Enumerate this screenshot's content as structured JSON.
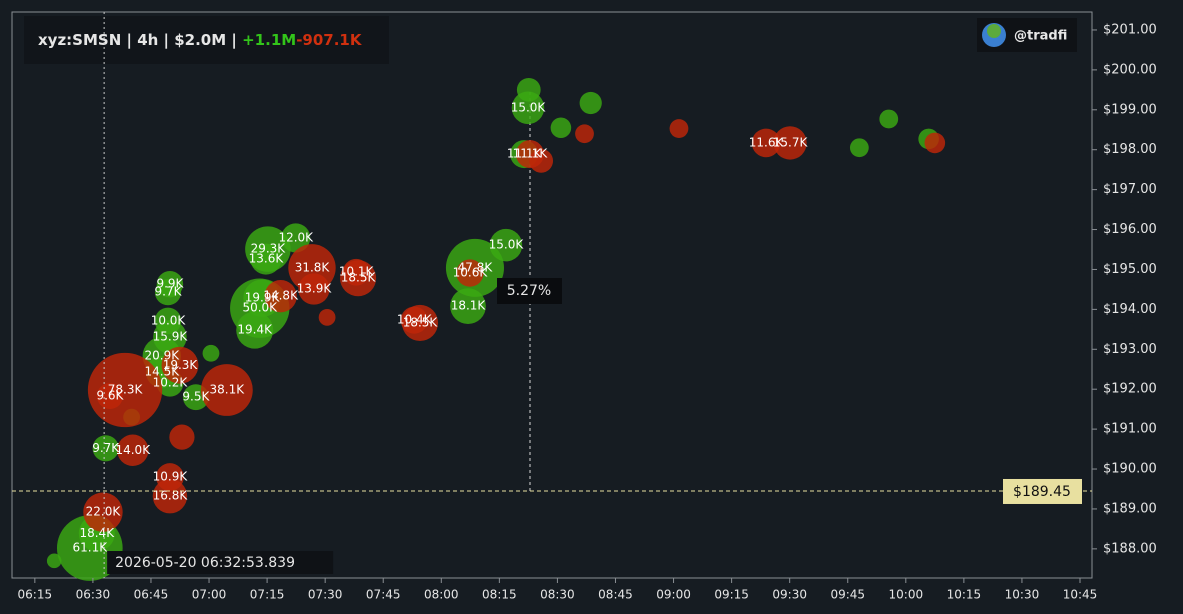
{
  "header": {
    "title": "xyz:SMSN | 4h | $2.0M |",
    "buy_total": "+1.1M",
    "sell_total": "-907.1K",
    "brand": "@tradfi"
  },
  "chart_data": {
    "type": "bubble",
    "xlim": [
      369.1,
      648.1
    ],
    "ylim": [
      187.27,
      201.45
    ],
    "xticks": [
      {
        "value": 375,
        "label": "06:15"
      },
      {
        "value": 390,
        "label": "06:30"
      },
      {
        "value": 405,
        "label": "06:45"
      },
      {
        "value": 420,
        "label": "07:00"
      },
      {
        "value": 435,
        "label": "07:15"
      },
      {
        "value": 450,
        "label": "07:30"
      },
      {
        "value": 465,
        "label": "07:45"
      },
      {
        "value": 480,
        "label": "08:00"
      },
      {
        "value": 495,
        "label": "08:15"
      },
      {
        "value": 510,
        "label": "08:30"
      },
      {
        "value": 525,
        "label": "08:45"
      },
      {
        "value": 540,
        "label": "09:00"
      },
      {
        "value": 555,
        "label": "09:15"
      },
      {
        "value": 570,
        "label": "09:30"
      },
      {
        "value": 585,
        "label": "09:45"
      },
      {
        "value": 600,
        "label": "10:00"
      },
      {
        "value": 615,
        "label": "10:15"
      },
      {
        "value": 630,
        "label": "10:30"
      },
      {
        "value": 645,
        "label": "10:45"
      }
    ],
    "yticks": [
      {
        "value": 188,
        "label": "$188.00"
      },
      {
        "value": 189,
        "label": "$189.00"
      },
      {
        "value": 190,
        "label": "$190.00"
      },
      {
        "value": 191,
        "label": "$191.00"
      },
      {
        "value": 192,
        "label": "$192.00"
      },
      {
        "value": 193,
        "label": "$193.00"
      },
      {
        "value": 194,
        "label": "$194.00"
      },
      {
        "value": 195,
        "label": "$195.00"
      },
      {
        "value": 196,
        "label": "$196.00"
      },
      {
        "value": 197,
        "label": "$197.00"
      },
      {
        "value": 198,
        "label": "$198.00"
      },
      {
        "value": 199,
        "label": "$199.00"
      },
      {
        "value": 200,
        "label": "$200.00"
      },
      {
        "value": 201,
        "label": "$201.00"
      }
    ],
    "series": [
      {
        "color": "rgba(58,170,18,0.82)",
        "x": [
          389.2,
          391.0,
          393.3,
          409.9,
          409.4,
          409.4,
          409.9,
          407.8,
          407.8,
          409.9,
          416.6,
          435.2,
          434.7,
          442.4,
          433.1,
          431.8,
          433.7,
          488.7,
          486.9,
          496.7,
          501.4,
          502.4,
          502.6,
          518.6,
          510.9,
          605.9,
          595.6,
          588.0,
          420.5,
          400.0,
          380.0
        ],
        "values": [
          188.02,
          188.39,
          190.52,
          194.63,
          194.43,
          193.71,
          193.31,
          192.83,
          192.43,
          192.15,
          191.8,
          195.51,
          195.26,
          195.79,
          194.03,
          193.48,
          194.28,
          195.04,
          194.08,
          195.61,
          197.89,
          199.05,
          199.5,
          199.17,
          198.55,
          198.27,
          198.77,
          198.05,
          192.9,
          191.3,
          187.7
        ],
        "sizes": [
          61.1,
          18.4,
          9.7,
          9.9,
          9.7,
          10.0,
          15.9,
          20.9,
          14.5,
          10.2,
          9.5,
          29.3,
          13.6,
          12.0,
          50.0,
          19.4,
          19.9,
          47.8,
          18.1,
          15.0,
          11.1,
          15.0,
          8,
          7,
          6,
          6,
          5,
          5,
          4,
          4,
          3
        ],
        "labels": [
          "61.1K",
          "18.4K",
          "9.7K",
          "9.9K",
          "9.7K",
          "10.0K",
          "15.9K",
          "20.9K",
          "14.5K",
          "10.2K",
          "9.5K",
          "29.3K",
          "13.6K",
          "12.0K",
          "50.0K",
          "19.4K",
          "19.9K",
          "47.8K",
          "18.1K",
          "15.0K",
          "11.1K",
          "15.0K",
          null,
          null,
          null,
          null,
          null,
          null,
          null,
          null,
          null
        ]
      },
      {
        "color": "rgba(192,38,8,0.82)",
        "x": [
          398.3,
          394.4,
          400.3,
          392.6,
          412.5,
          424.6,
          409.9,
          409.9,
          438.5,
          446.6,
          447.1,
          458.0,
          458.5,
          473.0,
          474.5,
          487.4,
          502.9,
          563.9,
          570.1,
          541.4,
          505.8,
          607.5,
          413.0,
          450.5,
          517.0
        ],
        "values": [
          191.98,
          191.83,
          190.47,
          188.92,
          192.6,
          191.98,
          189.8,
          189.32,
          194.33,
          195.04,
          194.51,
          194.93,
          194.78,
          193.73,
          193.66,
          194.91,
          197.89,
          198.17,
          198.17,
          198.53,
          197.72,
          198.17,
          190.8,
          193.8,
          198.4
        ],
        "sizes": [
          78.3,
          9.6,
          14.0,
          22.0,
          19.3,
          38.1,
          10.9,
          16.8,
          14.8,
          31.8,
          13.9,
          10.1,
          18.5,
          10.4,
          18.5,
          10.6,
          11.1,
          11.6,
          15.7,
          5,
          8,
          6,
          9,
          4,
          5
        ],
        "labels": [
          "78.3K",
          "9.6K",
          "14.0K",
          "22.0K",
          "19.3K",
          "38.1K",
          "10.9K",
          "16.8K",
          "14.8K",
          "31.8K",
          "13.9K",
          "10.1K",
          "18.5K",
          "10.4K",
          "18.5K",
          "10.6K",
          "11.1K",
          "11.6K",
          "15.7K",
          null,
          null,
          null,
          null,
          null,
          null
        ]
      }
    ],
    "crosshair": {
      "time": "2026-05-20 06:32:53.839",
      "x": 392.9,
      "price": {
        "value": 189.45,
        "label": "$189.45"
      }
    },
    "change_label": "5.27%"
  }
}
